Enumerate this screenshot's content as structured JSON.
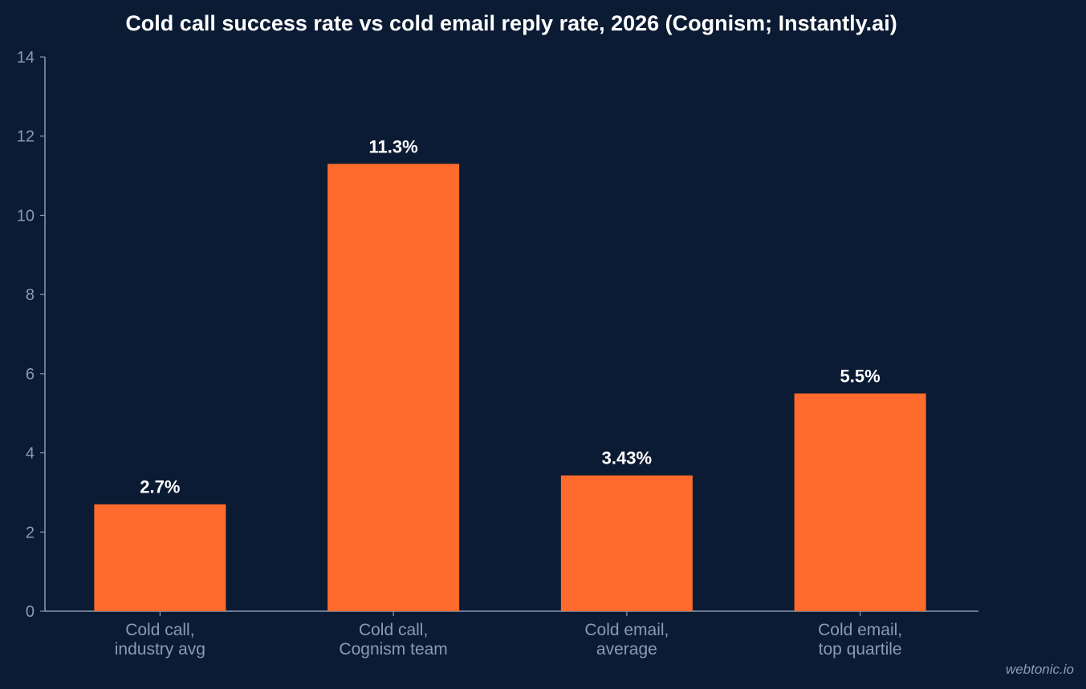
{
  "chart_data": {
    "type": "bar",
    "title": "Cold call success rate vs cold email reply rate, 2026 (Cognism; Instantly.ai)",
    "xlabel": "",
    "ylabel": "",
    "categories": [
      [
        "Cold call,",
        "industry avg"
      ],
      [
        "Cold call,",
        "Cognism team"
      ],
      [
        "Cold email,",
        "average"
      ],
      [
        "Cold email,",
        "top quartile"
      ]
    ],
    "values": [
      2.7,
      11.3,
      3.43,
      5.5
    ],
    "data_labels": [
      "2.7%",
      "11.3%",
      "3.43%",
      "5.5%"
    ],
    "ylim": [
      0,
      14
    ],
    "yticks": [
      0,
      2,
      4,
      6,
      8,
      10,
      12,
      14
    ],
    "grid": false,
    "legend": "none",
    "colors": {
      "background": "#0b1b33",
      "bar": "#ff6b2c",
      "axis": "#8a9ab3",
      "title": "#ffffff"
    }
  },
  "watermark": "webtonic.io"
}
